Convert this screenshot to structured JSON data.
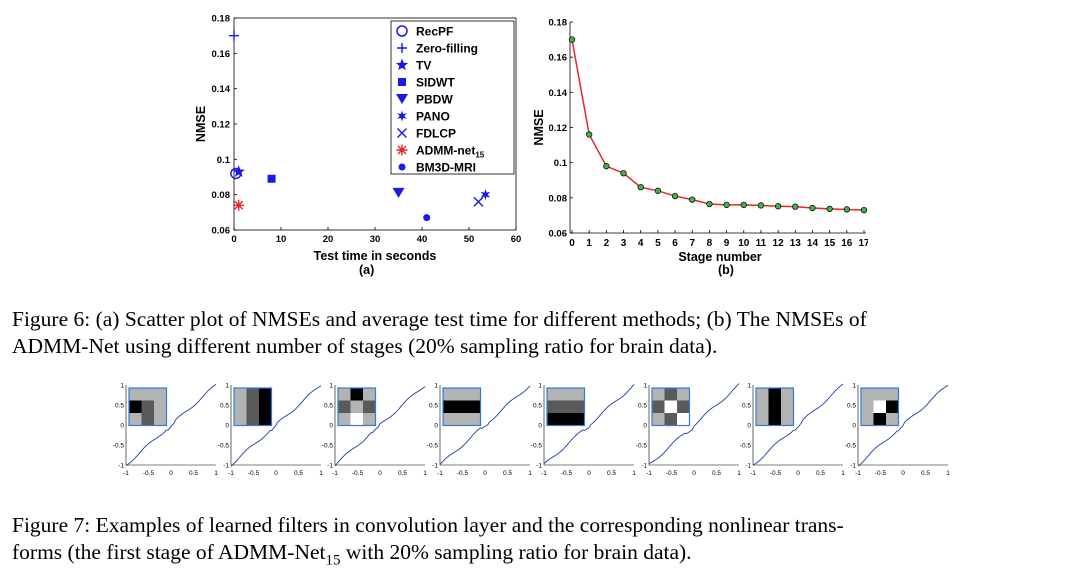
{
  "figure6": {
    "panel_a": {
      "label": "(a)",
      "legend": [
        {
          "name": "RecPF",
          "marker": "circle-open"
        },
        {
          "name": "Zero-filling",
          "marker": "plus"
        },
        {
          "name": "TV",
          "marker": "star-filled"
        },
        {
          "name": "SIDWT",
          "marker": "square"
        },
        {
          "name": "PBDW",
          "marker": "triangle-down"
        },
        {
          "name": "PANO",
          "marker": "hexagram"
        },
        {
          "name": "FDLCP",
          "marker": "x"
        },
        {
          "name": "ADMM-net",
          "subscript": "15",
          "marker": "asterisk",
          "color": "#e8252a"
        },
        {
          "name": "BM3D-MRI",
          "marker": "dot"
        }
      ]
    },
    "panel_b": {
      "label": "(b)"
    },
    "caption": [
      "Figure 6: (a) Scatter plot of NMSEs and average test time for different methods; (b) The NMSEs of",
      "ADMM-Net using different number of stages (20% sampling ratio for brain data)."
    ]
  },
  "figure7": {
    "filter_patterns": [
      [
        [
          1,
          1,
          1
        ],
        [
          0,
          2,
          1
        ],
        [
          1,
          2,
          1
        ]
      ],
      [
        [
          1,
          2,
          0
        ],
        [
          1,
          2,
          0
        ],
        [
          1,
          2,
          0
        ]
      ],
      [
        [
          1,
          0,
          1
        ],
        [
          2,
          1,
          2
        ],
        [
          1,
          3,
          1
        ]
      ],
      [
        [
          1,
          1,
          1
        ],
        [
          0,
          0,
          0
        ],
        [
          1,
          1,
          1
        ]
      ],
      [
        [
          1,
          1,
          1
        ],
        [
          2,
          2,
          2
        ],
        [
          0,
          0,
          0
        ]
      ],
      [
        [
          1,
          2,
          1
        ],
        [
          2,
          3,
          2
        ],
        [
          1,
          2,
          3
        ]
      ],
      [
        [
          1,
          0,
          1
        ],
        [
          1,
          0,
          1
        ],
        [
          1,
          0,
          1
        ]
      ],
      [
        [
          1,
          1,
          1
        ],
        [
          1,
          3,
          0
        ],
        [
          1,
          0,
          1
        ]
      ]
    ],
    "y_ticks": [
      "1",
      "0.5",
      "0",
      "-0.5",
      "-1"
    ],
    "x_ticks": [
      "-1",
      "-0.5",
      "0",
      "0.5",
      "1"
    ],
    "caption_prefix": "Figure 7: Examples of learned filters in convolution layer and the corresponding nonlinear trans-",
    "caption_line2_a": "forms (the first stage of ADMM-Net",
    "caption_sub": "15",
    "caption_line2_b": " with 20% sampling ratio for brain data)."
  },
  "chart_data": [
    {
      "type": "scatter",
      "xlabel": "Test time in seconds",
      "ylabel": "NMSE",
      "xlim": [
        0,
        60
      ],
      "ylim": [
        0.06,
        0.18
      ],
      "xticks": [
        0,
        10,
        20,
        30,
        40,
        50,
        60
      ],
      "yticks": [
        0.06,
        0.08,
        0.1,
        0.12,
        0.14,
        0.16,
        0.18
      ],
      "ytick_labels": [
        "0.06",
        "0.08",
        "0.1",
        "0.12",
        "0.14",
        "0.16",
        "0.18"
      ],
      "legend_position": "top-right",
      "series": [
        {
          "name": "RecPF",
          "x": 0.4,
          "y": 0.092
        },
        {
          "name": "Zero-filling",
          "x": 0.0,
          "y": 0.17
        },
        {
          "name": "TV",
          "x": 1.0,
          "y": 0.093
        },
        {
          "name": "SIDWT",
          "x": 8.0,
          "y": 0.089
        },
        {
          "name": "PBDW",
          "x": 35.0,
          "y": 0.081
        },
        {
          "name": "PANO",
          "x": 53.5,
          "y": 0.08
        },
        {
          "name": "FDLCP",
          "x": 52.0,
          "y": 0.076
        },
        {
          "name": "ADMM-net",
          "x": 1.0,
          "y": 0.074
        },
        {
          "name": "BM3D-MRI",
          "x": 41.0,
          "y": 0.067
        }
      ]
    },
    {
      "type": "line",
      "xlabel": "Stage number",
      "ylabel": "NMSE",
      "xlim": [
        0,
        17
      ],
      "ylim": [
        0.06,
        0.18
      ],
      "xticks": [
        0,
        1,
        2,
        3,
        4,
        5,
        6,
        7,
        8,
        9,
        10,
        11,
        12,
        13,
        14,
        15,
        16,
        17
      ],
      "yticks": [
        0.06,
        0.08,
        0.1,
        0.12,
        0.14,
        0.16,
        0.18
      ],
      "ytick_labels": [
        "0.06",
        "0.08",
        "0.1",
        "0.12",
        "0.14",
        "0.16",
        "0.18"
      ],
      "x": [
        0,
        1,
        2,
        3,
        4,
        5,
        6,
        7,
        8,
        9,
        10,
        11,
        12,
        13,
        14,
        15,
        16,
        17
      ],
      "y": [
        0.17,
        0.116,
        0.098,
        0.094,
        0.086,
        0.084,
        0.081,
        0.079,
        0.0765,
        0.076,
        0.076,
        0.0757,
        0.0752,
        0.075,
        0.0742,
        0.0737,
        0.0734,
        0.073
      ],
      "line_color": "#e8252a",
      "marker_color": "#3cb44b"
    }
  ]
}
